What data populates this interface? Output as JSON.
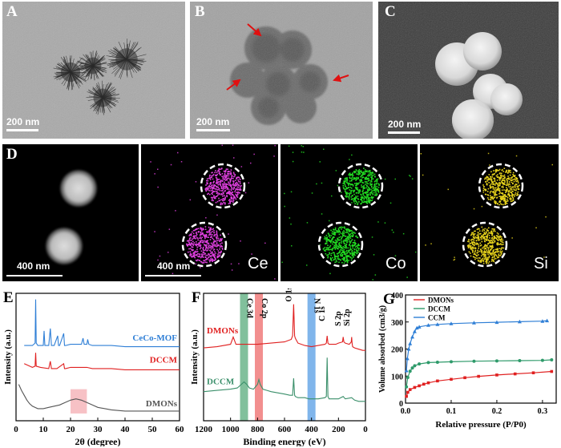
{
  "figure": {
    "panel_labels": {
      "A": "A",
      "B": "B",
      "C": "C",
      "D": "D",
      "E": "E",
      "F": "F",
      "G": "G"
    },
    "scale_bars": {
      "a": "200 nm",
      "b": "200 nm",
      "c": "200 nm",
      "d1": "400 nm",
      "d2": "400 nm"
    },
    "mapping_elements": [
      "Ce",
      "Co",
      "Si"
    ],
    "colors": {
      "ce": "#e040e0",
      "co": "#22dd22",
      "si": "#e6d21c",
      "arrow": "#e01010"
    }
  },
  "chart_data": [
    {
      "id": "E",
      "type": "line",
      "xlabel": "2θ (degree)",
      "ylabel": "Intensity (a.u.)",
      "xlim": [
        0,
        60
      ],
      "xticks": [
        0,
        10,
        20,
        30,
        40,
        50,
        60
      ],
      "highlight": {
        "x_range": [
          20,
          26
        ],
        "color": "#f4a6ac"
      },
      "series": [
        {
          "name": "CeCo-MOF",
          "color": "#2f7fd6",
          "x": [
            3,
            6,
            7,
            7.2,
            7.4,
            8,
            10,
            10.3,
            10.6,
            12,
            12.6,
            13,
            14,
            15.3,
            15.6,
            16,
            17.5,
            17.8,
            18.2,
            20,
            22,
            24,
            24.6,
            25,
            26,
            26.3,
            26.7,
            28,
            30,
            35,
            40,
            45,
            50,
            55,
            60
          ],
          "y": [
            0.62,
            0.62,
            0.64,
            1.0,
            0.64,
            0.62,
            0.62,
            0.74,
            0.62,
            0.62,
            0.76,
            0.62,
            0.62,
            0.7,
            0.62,
            0.62,
            0.72,
            0.62,
            0.62,
            0.63,
            0.63,
            0.63,
            0.68,
            0.63,
            0.63,
            0.67,
            0.63,
            0.62,
            0.62,
            0.62,
            0.61,
            0.61,
            0.61,
            0.61,
            0.61
          ]
        },
        {
          "name": "DCCM",
          "color": "#e02020",
          "x": [
            3,
            6,
            7,
            7.2,
            7.4,
            9,
            12,
            12.6,
            13,
            15,
            17.5,
            17.8,
            18.2,
            20,
            22,
            24,
            26,
            28,
            30,
            35,
            40,
            45,
            50,
            55,
            60
          ],
          "y": [
            0.47,
            0.44,
            0.45,
            0.56,
            0.45,
            0.44,
            0.43,
            0.49,
            0.43,
            0.43,
            0.47,
            0.43,
            0.43,
            0.44,
            0.44,
            0.44,
            0.44,
            0.43,
            0.43,
            0.43,
            0.42,
            0.42,
            0.42,
            0.42,
            0.42
          ]
        },
        {
          "name": "DMONs",
          "color": "#555555",
          "x": [
            1,
            2,
            3,
            4,
            5,
            6,
            8,
            10,
            12,
            14,
            16,
            18,
            20,
            22,
            24,
            26,
            28,
            30,
            35,
            40,
            45,
            50,
            55,
            60
          ],
          "y": [
            0.3,
            0.25,
            0.21,
            0.17,
            0.14,
            0.12,
            0.1,
            0.1,
            0.11,
            0.12,
            0.13,
            0.15,
            0.17,
            0.18,
            0.17,
            0.15,
            0.13,
            0.11,
            0.09,
            0.08,
            0.08,
            0.08,
            0.08,
            0.08
          ]
        }
      ]
    },
    {
      "id": "F",
      "type": "line",
      "xlabel": "Binding energy (eV)",
      "ylabel": "Intensity (a.u.)",
      "xlim": [
        1200,
        0
      ],
      "xticks": [
        1200,
        1000,
        800,
        600,
        400,
        200,
        0
      ],
      "bands": [
        {
          "label": "Ce 3d",
          "center": 900,
          "color": "#6bb58b"
        },
        {
          "label": "Co 2p",
          "center": 790,
          "color": "#f07b7b"
        },
        {
          "label": "N 1s",
          "center": 400,
          "color": "#6aa8e8"
        }
      ],
      "peak_labels": [
        {
          "label": "O 1s",
          "x": 532
        },
        {
          "label": "C 1s",
          "x": 284
        },
        {
          "label": "S 2p",
          "x": 165
        },
        {
          "label": "Si 2p",
          "x": 102
        }
      ],
      "series": [
        {
          "name": "DMONs",
          "color": "#e02020",
          "x": [
            1200,
            1100,
            1000,
            980,
            960,
            900,
            800,
            700,
            600,
            550,
            540,
            532,
            525,
            520,
            500,
            450,
            400,
            350,
            300,
            290,
            284,
            278,
            270,
            220,
            200,
            170,
            165,
            160,
            150,
            120,
            105,
            102,
            99,
            95,
            80,
            50,
            20,
            0
          ],
          "y": [
            0.6,
            0.61,
            0.63,
            0.69,
            0.63,
            0.63,
            0.63,
            0.64,
            0.65,
            0.67,
            0.7,
            0.96,
            0.7,
            0.68,
            0.64,
            0.62,
            0.61,
            0.62,
            0.63,
            0.64,
            0.7,
            0.64,
            0.63,
            0.63,
            0.64,
            0.65,
            0.69,
            0.65,
            0.64,
            0.63,
            0.65,
            0.69,
            0.64,
            0.61,
            0.6,
            0.59,
            0.58,
            0.58
          ]
        },
        {
          "name": "DCCM",
          "color": "#3a8f6a",
          "x": [
            1200,
            1100,
            1000,
            950,
            920,
            900,
            880,
            860,
            830,
            800,
            790,
            780,
            760,
            730,
            700,
            650,
            600,
            560,
            540,
            532,
            525,
            520,
            500,
            450,
            420,
            400,
            380,
            350,
            300,
            290,
            284,
            278,
            270,
            250,
            200,
            165,
            150,
            102,
            80,
            50,
            0
          ],
          "y": [
            0.24,
            0.25,
            0.26,
            0.27,
            0.3,
            0.32,
            0.3,
            0.27,
            0.26,
            0.3,
            0.34,
            0.3,
            0.26,
            0.25,
            0.24,
            0.23,
            0.22,
            0.21,
            0.21,
            0.35,
            0.21,
            0.2,
            0.19,
            0.19,
            0.18,
            0.18,
            0.18,
            0.18,
            0.19,
            0.2,
            0.52,
            0.2,
            0.18,
            0.18,
            0.18,
            0.2,
            0.18,
            0.19,
            0.17,
            0.16,
            0.16
          ]
        }
      ]
    },
    {
      "id": "G",
      "type": "line",
      "xlabel": "Relative pressure (P/P0)",
      "ylabel": "Volume absorbed (cm3/g)",
      "xlim": [
        0,
        0.33
      ],
      "ylim": [
        0,
        400
      ],
      "xticks": [
        0.0,
        0.1,
        0.2,
        0.3
      ],
      "yticks": [
        0,
        100,
        200,
        300,
        400
      ],
      "legend_position": "top-left",
      "series": [
        {
          "name": "DMONs",
          "color": "#e02020",
          "x": [
            0.002,
            0.005,
            0.01,
            0.02,
            0.03,
            0.04,
            0.05,
            0.07,
            0.1,
            0.13,
            0.16,
            0.2,
            0.24,
            0.28,
            0.32
          ],
          "y": [
            25,
            40,
            50,
            58,
            64,
            70,
            75,
            82,
            88,
            94,
            99,
            104,
            108,
            112,
            117
          ]
        },
        {
          "name": "DCCM",
          "color": "#2e9a6a",
          "x": [
            0.002,
            0.005,
            0.01,
            0.015,
            0.02,
            0.03,
            0.05,
            0.07,
            0.1,
            0.15,
            0.2,
            0.25,
            0.3,
            0.32
          ],
          "y": [
            60,
            95,
            118,
            130,
            138,
            145,
            150,
            151,
            153,
            155,
            156,
            157,
            158,
            160
          ]
        },
        {
          "name": "CCM",
          "color": "#2f7fd6",
          "x": [
            0.002,
            0.004,
            0.007,
            0.01,
            0.015,
            0.02,
            0.025,
            0.03,
            0.05,
            0.07,
            0.1,
            0.15,
            0.2,
            0.25,
            0.3,
            0.31
          ],
          "y": [
            120,
            165,
            200,
            220,
            245,
            265,
            278,
            282,
            288,
            291,
            294,
            297,
            299,
            301,
            303,
            305
          ]
        }
      ]
    }
  ]
}
